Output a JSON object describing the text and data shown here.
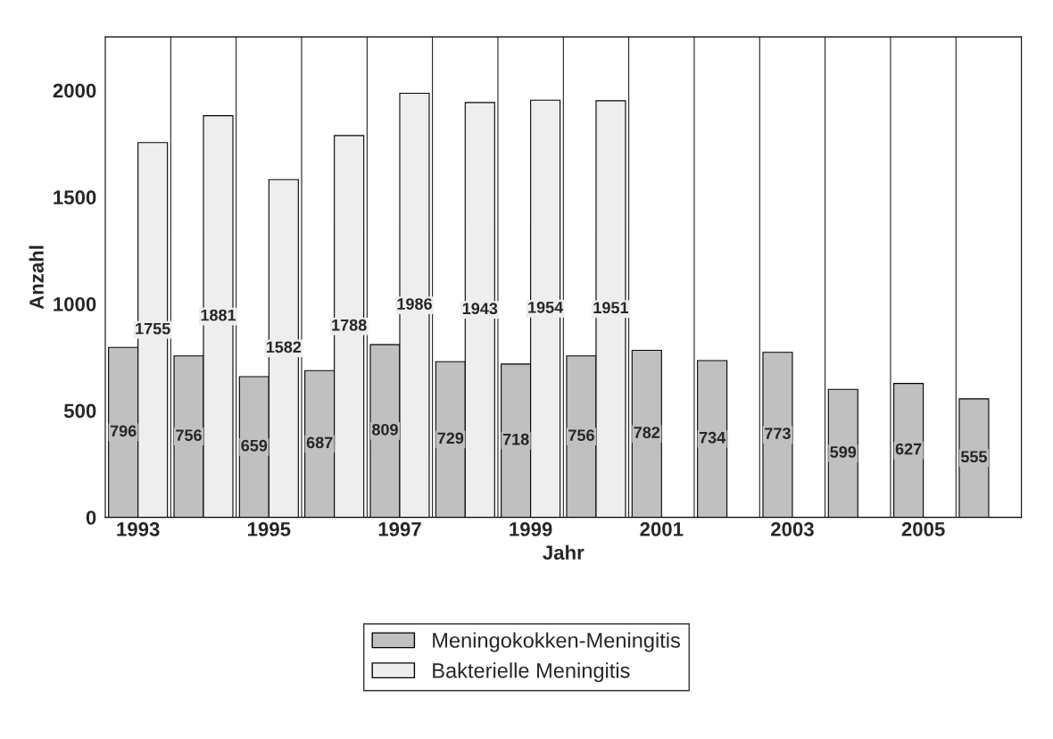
{
  "chart_data": {
    "type": "bar",
    "xlabel": "Jahr",
    "ylabel": "Anzahl",
    "categories": [
      "1993",
      null,
      "1995",
      null,
      "1997",
      null,
      "1999",
      null,
      "2001",
      null,
      "2003",
      null,
      "2005",
      null
    ],
    "series": [
      {
        "name": "Meningokokken-Meningitis",
        "color": "#c0c0c0",
        "values": [
          796,
          756,
          659,
          687,
          809,
          729,
          718,
          756,
          782,
          734,
          773,
          599,
          627,
          555
        ]
      },
      {
        "name": "Bakterielle Meningitis",
        "color": "#eeeeee",
        "values": [
          1755,
          1881,
          1582,
          1788,
          1986,
          1943,
          1954,
          1951,
          null,
          null,
          null,
          null,
          null,
          null
        ]
      }
    ],
    "ylim": [
      0,
      2250
    ],
    "yticks": [
      0,
      500,
      1000,
      1500,
      2000
    ],
    "grid": "x",
    "legend": "bottom",
    "data_labels": true
  }
}
